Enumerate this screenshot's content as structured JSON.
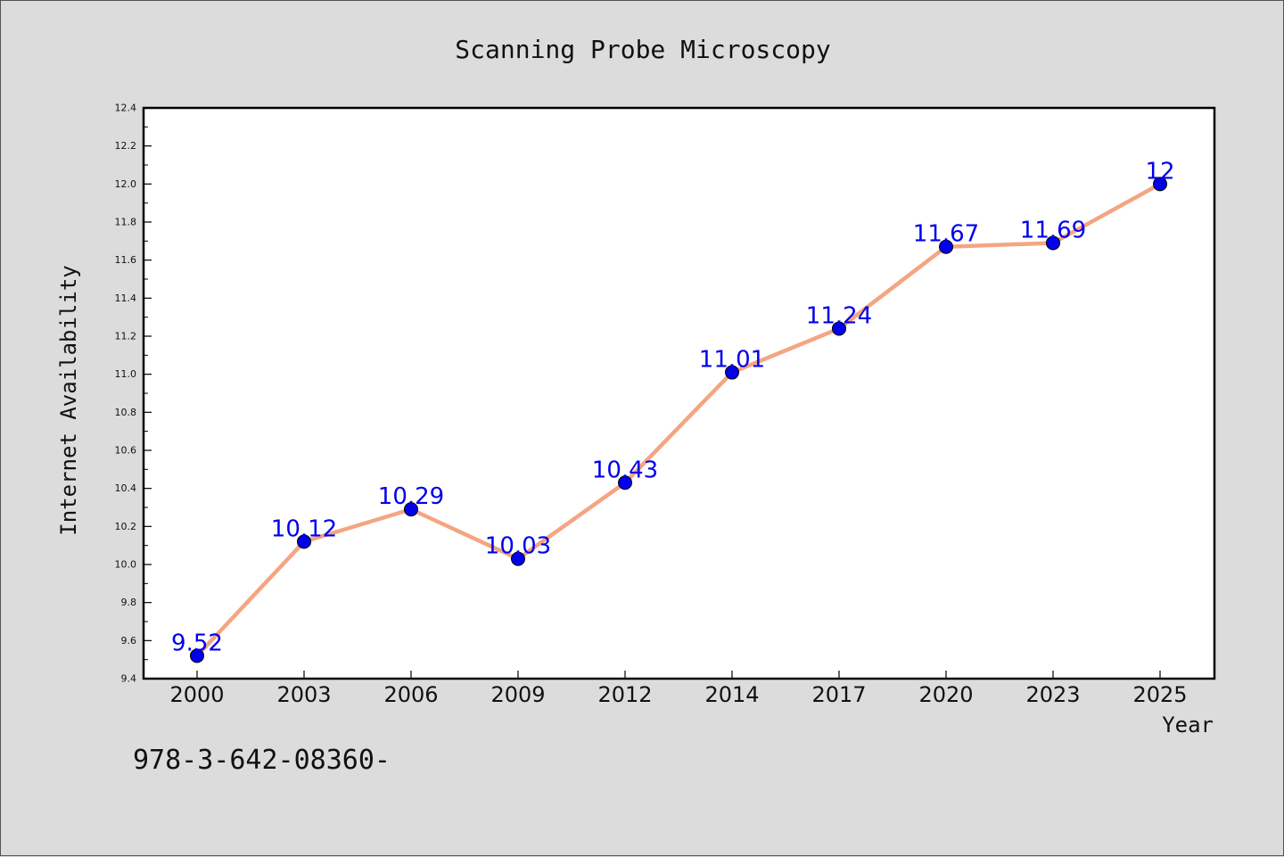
{
  "chart_data": {
    "type": "line",
    "title": "Scanning Probe Microscopy",
    "xlabel": "Year",
    "ylabel": "Internet Availability",
    "categories": [
      "2000",
      "2003",
      "2006",
      "2009",
      "2012",
      "2014",
      "2017",
      "2020",
      "2023",
      "2025"
    ],
    "series": [
      {
        "values": [
          9.52,
          10.12,
          10.29,
          10.03,
          10.43,
          11.01,
          11.24,
          11.67,
          11.69,
          12
        ]
      }
    ],
    "data_labels": [
      "9.52",
      "10.12",
      "10.29",
      "10.03",
      "10.43",
      "11.01",
      "11.24",
      "11.67",
      "11.69",
      "12"
    ],
    "ylim": [
      9.4,
      12.4
    ],
    "yticks": [
      "9.4",
      "9.6",
      "9.8",
      "10.0",
      "10.2",
      "10.4",
      "10.6",
      "10.8",
      "11.0",
      "11.2",
      "11.4",
      "11.6",
      "11.8",
      "12.0",
      "12.2",
      "12.4"
    ],
    "grid": false,
    "line_color": "#f4a582",
    "marker_color": "#0000ee",
    "label_color": "#0000ee"
  },
  "footer": {
    "text": "978-3-642-08360-"
  }
}
